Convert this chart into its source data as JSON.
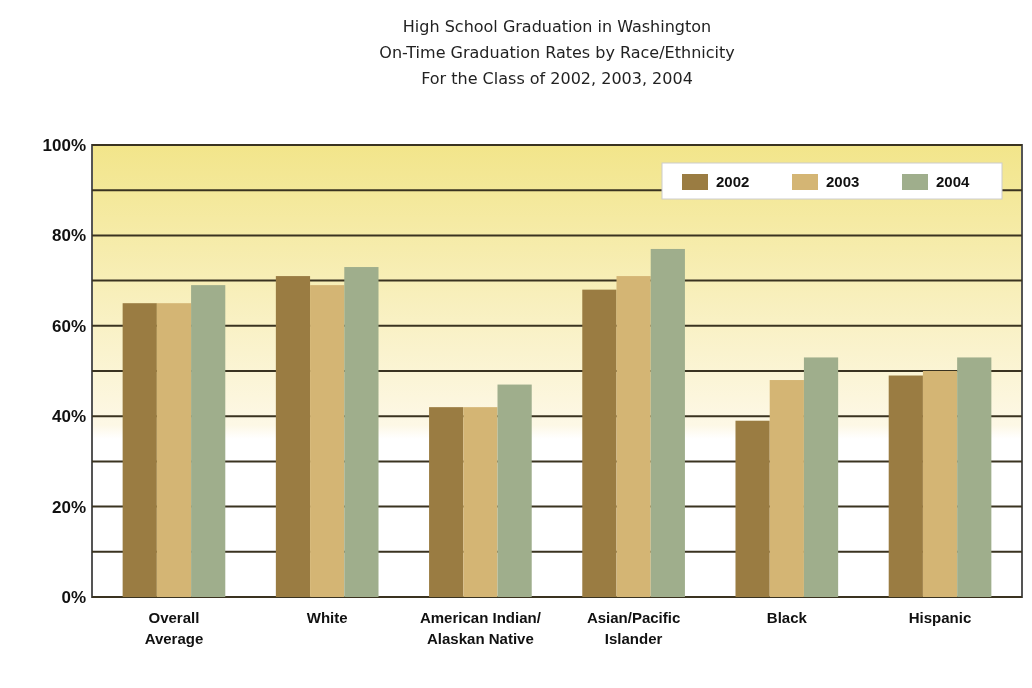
{
  "chart_data": {
    "type": "bar",
    "title": "High School Graduation in Washington",
    "subtitle": "On-Time Graduation Rates by Race/Ethnicity\nFor the Class of 2002, 2003, 2004",
    "categories": [
      "Overall\nAverage",
      "White",
      "American Indian/\nAlaskan Native",
      "Asian/Pacific\nIslander",
      "Black",
      "Hispanic"
    ],
    "series": [
      {
        "name": "2002",
        "color": "#9a7c42",
        "values": [
          65,
          71,
          42,
          68,
          39,
          49
        ]
      },
      {
        "name": "2003",
        "color": "#d4b574",
        "values": [
          65,
          69,
          42,
          71,
          48,
          50
        ]
      },
      {
        "name": "2004",
        "color": "#9fae8c",
        "values": [
          69,
          73,
          47,
          77,
          53,
          53
        ]
      }
    ],
    "ylim": [
      0,
      100
    ],
    "yticks": [
      {
        "value": 0,
        "label": "0%"
      },
      {
        "value": 10,
        "label": null
      },
      {
        "value": 20,
        "label": "20%"
      },
      {
        "value": 30,
        "label": null
      },
      {
        "value": 40,
        "label": "40%"
      },
      {
        "value": 50,
        "label": null
      },
      {
        "value": 60,
        "label": "60%"
      },
      {
        "value": 70,
        "label": null
      },
      {
        "value": 80,
        "label": "80%"
      },
      {
        "value": 90,
        "label": null
      },
      {
        "value": 100,
        "label": "100%"
      }
    ],
    "grid": "y",
    "legend": "top right"
  }
}
